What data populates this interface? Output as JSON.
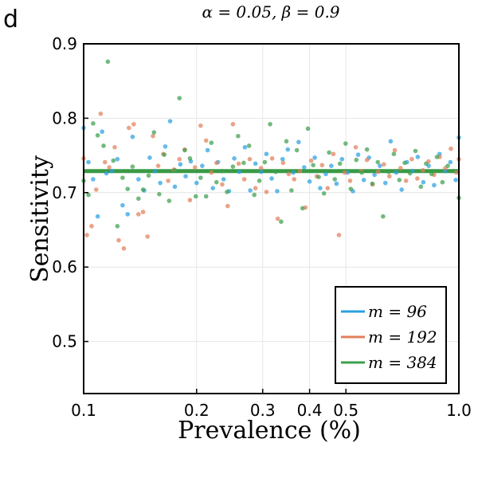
{
  "panel_label": "d",
  "chart_data": {
    "type": "scatter",
    "title": "α = 0.05, β = 0.9",
    "xlabel": "Prevalence (%)",
    "ylabel": "Sensitivity",
    "xscale": "log",
    "xlim": [
      0.1,
      1.0
    ],
    "ylim": [
      0.43,
      0.9
    ],
    "grid": true,
    "legend_position": "bottom-right",
    "x_ticks": [
      {
        "value": 0.1,
        "label": "0.1"
      },
      {
        "value": 0.2,
        "label": "0.2"
      },
      {
        "value": 0.3,
        "label": "0.3"
      },
      {
        "value": 0.4,
        "label": "0.4"
      },
      {
        "value": 0.5,
        "label": "0.5"
      },
      {
        "value": 1.0,
        "label": "1.0"
      }
    ],
    "y_ticks": [
      {
        "value": 0.5,
        "label": "0.5"
      },
      {
        "value": 0.6,
        "label": "0.6"
      },
      {
        "value": 0.7,
        "label": "0.7"
      },
      {
        "value": 0.8,
        "label": "0.8"
      },
      {
        "value": 0.9,
        "label": "0.9"
      }
    ],
    "reference_line": {
      "y": 0.729,
      "color": "#3a9a45"
    },
    "series": [
      {
        "name": "m = 96",
        "color": "#2aa0e0",
        "points": [
          [
            0.1,
            0.787
          ],
          [
            0.103,
            0.741
          ],
          [
            0.106,
            0.718
          ],
          [
            0.109,
            0.668
          ],
          [
            0.112,
            0.782
          ],
          [
            0.115,
            0.726
          ],
          [
            0.119,
            0.729
          ],
          [
            0.123,
            0.745
          ],
          [
            0.127,
            0.683
          ],
          [
            0.131,
            0.671
          ],
          [
            0.135,
            0.775
          ],
          [
            0.14,
            0.718
          ],
          [
            0.145,
            0.703
          ],
          [
            0.15,
            0.747
          ],
          [
            0.155,
            0.729
          ],
          [
            0.16,
            0.713
          ],
          [
            0.165,
            0.762
          ],
          [
            0.17,
            0.796
          ],
          [
            0.175,
            0.708
          ],
          [
            0.181,
            0.738
          ],
          [
            0.187,
            0.722
          ],
          [
            0.193,
            0.742
          ],
          [
            0.2,
            0.713
          ],
          [
            0.207,
            0.736
          ],
          [
            0.214,
            0.757
          ],
          [
            0.221,
            0.706
          ],
          [
            0.228,
            0.741
          ],
          [
            0.236,
            0.718
          ],
          [
            0.244,
            0.702
          ],
          [
            0.252,
            0.746
          ],
          [
            0.26,
            0.728
          ],
          [
            0.269,
            0.761
          ],
          [
            0.278,
            0.703
          ],
          [
            0.287,
            0.739
          ],
          [
            0.297,
            0.728
          ],
          [
            0.307,
            0.752
          ],
          [
            0.317,
            0.719
          ],
          [
            0.328,
            0.702
          ],
          [
            0.339,
            0.745
          ],
          [
            0.35,
            0.758
          ],
          [
            0.362,
            0.727
          ],
          [
            0.374,
            0.768
          ],
          [
            0.387,
            0.734
          ],
          [
            0.4,
            0.715
          ],
          [
            0.413,
            0.747
          ],
          [
            0.427,
            0.706
          ],
          [
            0.442,
            0.725
          ],
          [
            0.457,
            0.736
          ],
          [
            0.472,
            0.712
          ],
          [
            0.488,
            0.745
          ],
          [
            0.505,
            0.727
          ],
          [
            0.522,
            0.702
          ],
          [
            0.539,
            0.751
          ],
          [
            0.558,
            0.717
          ],
          [
            0.576,
            0.747
          ],
          [
            0.596,
            0.724
          ],
          [
            0.616,
            0.736
          ],
          [
            0.637,
            0.713
          ],
          [
            0.658,
            0.769
          ],
          [
            0.681,
            0.727
          ],
          [
            0.704,
            0.704
          ],
          [
            0.727,
            0.741
          ],
          [
            0.752,
            0.729
          ],
          [
            0.777,
            0.748
          ],
          [
            0.804,
            0.714
          ],
          [
            0.831,
            0.736
          ],
          [
            0.859,
            0.71
          ],
          [
            0.888,
            0.752
          ],
          [
            0.918,
            0.729
          ],
          [
            0.949,
            0.741
          ],
          [
            0.981,
            0.717
          ],
          [
            1.0,
            0.774
          ]
        ]
      },
      {
        "name": "m = 192",
        "color": "#e0805a",
        "points": [
          [
            0.1,
            0.746
          ],
          [
            0.102,
            0.643
          ],
          [
            0.105,
            0.655
          ],
          [
            0.108,
            0.704
          ],
          [
            0.111,
            0.806
          ],
          [
            0.114,
            0.741
          ],
          [
            0.117,
            0.734
          ],
          [
            0.121,
            0.761
          ],
          [
            0.124,
            0.636
          ],
          [
            0.128,
            0.625
          ],
          [
            0.132,
            0.787
          ],
          [
            0.136,
            0.792
          ],
          [
            0.14,
            0.671
          ],
          [
            0.144,
            0.674
          ],
          [
            0.148,
            0.641
          ],
          [
            0.153,
            0.776
          ],
          [
            0.158,
            0.736
          ],
          [
            0.163,
            0.752
          ],
          [
            0.168,
            0.716
          ],
          [
            0.174,
            0.731
          ],
          [
            0.18,
            0.745
          ],
          [
            0.186,
            0.758
          ],
          [
            0.192,
            0.69
          ],
          [
            0.198,
            0.734
          ],
          [
            0.205,
            0.79
          ],
          [
            0.212,
            0.77
          ],
          [
            0.219,
            0.727
          ],
          [
            0.226,
            0.74
          ],
          [
            0.234,
            0.711
          ],
          [
            0.242,
            0.682
          ],
          [
            0.25,
            0.792
          ],
          [
            0.259,
            0.739
          ],
          [
            0.268,
            0.718
          ],
          [
            0.277,
            0.745
          ],
          [
            0.287,
            0.706
          ],
          [
            0.297,
            0.733
          ],
          [
            0.307,
            0.701
          ],
          [
            0.318,
            0.746
          ],
          [
            0.329,
            0.665
          ],
          [
            0.34,
            0.74
          ],
          [
            0.352,
            0.725
          ],
          [
            0.364,
            0.718
          ],
          [
            0.377,
            0.729
          ],
          [
            0.39,
            0.68
          ],
          [
            0.404,
            0.743
          ],
          [
            0.418,
            0.722
          ],
          [
            0.432,
            0.737
          ],
          [
            0.447,
            0.706
          ],
          [
            0.463,
            0.752
          ],
          [
            0.479,
            0.643
          ],
          [
            0.496,
            0.727
          ],
          [
            0.513,
            0.716
          ],
          [
            0.531,
            0.761
          ],
          [
            0.55,
            0.729
          ],
          [
            0.569,
            0.744
          ],
          [
            0.589,
            0.711
          ],
          [
            0.609,
            0.728
          ],
          [
            0.631,
            0.738
          ],
          [
            0.653,
            0.722
          ],
          [
            0.675,
            0.757
          ],
          [
            0.699,
            0.733
          ],
          [
            0.723,
            0.716
          ],
          [
            0.749,
            0.745
          ],
          [
            0.775,
            0.719
          ],
          [
            0.802,
            0.73
          ],
          [
            0.83,
            0.742
          ],
          [
            0.859,
            0.724
          ],
          [
            0.889,
            0.748
          ],
          [
            0.92,
            0.733
          ],
          [
            0.952,
            0.759
          ],
          [
            0.985,
            0.727
          ],
          [
            1.0,
            0.745
          ]
        ]
      },
      {
        "name": "m = 384",
        "color": "#3ca04c",
        "points": [
          [
            0.1,
            0.716
          ],
          [
            0.103,
            0.697
          ],
          [
            0.106,
            0.793
          ],
          [
            0.109,
            0.777
          ],
          [
            0.113,
            0.763
          ],
          [
            0.116,
            0.876
          ],
          [
            0.12,
            0.743
          ],
          [
            0.123,
            0.655
          ],
          [
            0.127,
            0.72
          ],
          [
            0.131,
            0.705
          ],
          [
            0.135,
            0.735
          ],
          [
            0.14,
            0.692
          ],
          [
            0.144,
            0.704
          ],
          [
            0.149,
            0.723
          ],
          [
            0.154,
            0.781
          ],
          [
            0.159,
            0.698
          ],
          [
            0.164,
            0.751
          ],
          [
            0.169,
            0.689
          ],
          [
            0.175,
            0.73
          ],
          [
            0.18,
            0.827
          ],
          [
            0.186,
            0.757
          ],
          [
            0.192,
            0.746
          ],
          [
            0.199,
            0.695
          ],
          [
            0.205,
            0.72
          ],
          [
            0.212,
            0.695
          ],
          [
            0.219,
            0.767
          ],
          [
            0.226,
            0.714
          ],
          [
            0.234,
            0.729
          ],
          [
            0.241,
            0.701
          ],
          [
            0.25,
            0.735
          ],
          [
            0.258,
            0.776
          ],
          [
            0.267,
            0.74
          ],
          [
            0.276,
            0.763
          ],
          [
            0.285,
            0.697
          ],
          [
            0.294,
            0.716
          ],
          [
            0.304,
            0.741
          ],
          [
            0.314,
            0.792
          ],
          [
            0.325,
            0.728
          ],
          [
            0.336,
            0.661
          ],
          [
            0.347,
            0.769
          ],
          [
            0.358,
            0.703
          ],
          [
            0.37,
            0.757
          ],
          [
            0.383,
            0.679
          ],
          [
            0.396,
            0.786
          ],
          [
            0.409,
            0.737
          ],
          [
            0.423,
            0.721
          ],
          [
            0.437,
            0.699
          ],
          [
            0.451,
            0.754
          ],
          [
            0.467,
            0.718
          ],
          [
            0.482,
            0.739
          ],
          [
            0.499,
            0.766
          ],
          [
            0.515,
            0.705
          ],
          [
            0.533,
            0.744
          ],
          [
            0.551,
            0.727
          ],
          [
            0.569,
            0.758
          ],
          [
            0.588,
            0.712
          ],
          [
            0.608,
            0.741
          ],
          [
            0.628,
            0.668
          ],
          [
            0.65,
            0.728
          ],
          [
            0.671,
            0.752
          ],
          [
            0.694,
            0.717
          ],
          [
            0.717,
            0.74
          ],
          [
            0.741,
            0.726
          ],
          [
            0.766,
            0.756
          ],
          [
            0.792,
            0.708
          ],
          [
            0.818,
            0.739
          ],
          [
            0.846,
            0.725
          ],
          [
            0.874,
            0.748
          ],
          [
            0.904,
            0.714
          ],
          [
            0.934,
            0.736
          ],
          [
            0.965,
            0.729
          ],
          [
            1.0,
            0.693
          ]
        ]
      }
    ]
  }
}
